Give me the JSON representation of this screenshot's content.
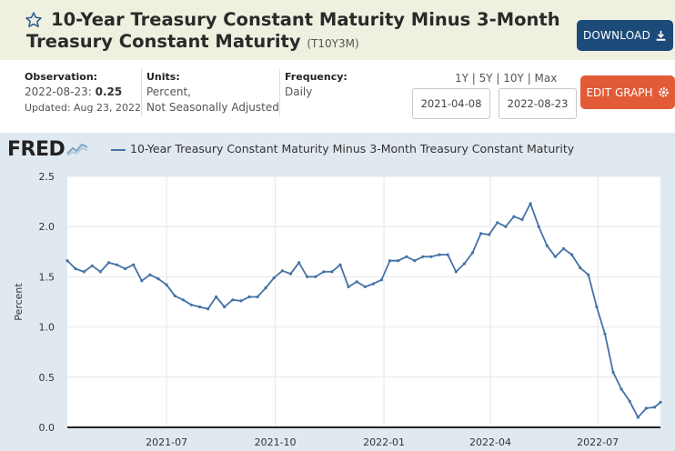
{
  "header": {
    "title": "10-Year Treasury Constant Maturity Minus 3-Month Treasury Constant Maturity",
    "series_id": "(T10Y3M)",
    "download_label": "DOWNLOAD"
  },
  "observation": {
    "label": "Observation:",
    "date": "2022-08-23:",
    "value": "0.25",
    "updated": "Updated: Aug 23, 2022"
  },
  "units": {
    "label": "Units:",
    "line1": "Percent,",
    "line2": "Not Seasonally Adjusted"
  },
  "frequency": {
    "label": "Frequency:",
    "value": "Daily"
  },
  "ranges": {
    "text": "1Y | 5Y | 10Y | Max",
    "start_date": "2021-04-08",
    "end_date": "2022-08-23",
    "edit_label": "EDIT GRAPH"
  },
  "colors": {
    "accent": "#1c4b7a",
    "edit": "#e15b37",
    "line": "#4572a7",
    "chart_bg": "#e1e9f0"
  },
  "chart_data": {
    "type": "line",
    "title": "",
    "legend": "10-Year Treasury Constant Maturity Minus 3-Month Treasury Constant Maturity",
    "ylabel": "Percent",
    "xlabel": "",
    "ylim": [
      0,
      2.5
    ],
    "xlim": [
      "2021-04-08",
      "2022-08-23"
    ],
    "yticks": [
      "0.0",
      "0.5",
      "1.0",
      "1.5",
      "2.0",
      "2.5"
    ],
    "xticks": [
      {
        "label": "2021-07",
        "date": "2021-07-01"
      },
      {
        "label": "2021-10",
        "date": "2021-10-01"
      },
      {
        "label": "2022-01",
        "date": "2022-01-01"
      },
      {
        "label": "2022-04",
        "date": "2022-04-01"
      },
      {
        "label": "2022-07",
        "date": "2022-07-01"
      }
    ],
    "grid": true,
    "series": [
      {
        "name": "10-Year Treasury Constant Maturity Minus 3-Month Treasury Constant Maturity",
        "points": [
          [
            "2021-04-08",
            1.66
          ],
          [
            "2021-04-15",
            1.58
          ],
          [
            "2021-04-22",
            1.55
          ],
          [
            "2021-04-29",
            1.61
          ],
          [
            "2021-05-06",
            1.55
          ],
          [
            "2021-05-13",
            1.64
          ],
          [
            "2021-05-20",
            1.62
          ],
          [
            "2021-05-27",
            1.58
          ],
          [
            "2021-06-03",
            1.62
          ],
          [
            "2021-06-10",
            1.46
          ],
          [
            "2021-06-17",
            1.52
          ],
          [
            "2021-06-24",
            1.48
          ],
          [
            "2021-07-01",
            1.42
          ],
          [
            "2021-07-08",
            1.31
          ],
          [
            "2021-07-15",
            1.27
          ],
          [
            "2021-07-22",
            1.22
          ],
          [
            "2021-07-29",
            1.2
          ],
          [
            "2021-08-05",
            1.18
          ],
          [
            "2021-08-12",
            1.3
          ],
          [
            "2021-08-19",
            1.2
          ],
          [
            "2021-08-26",
            1.27
          ],
          [
            "2021-09-02",
            1.26
          ],
          [
            "2021-09-09",
            1.3
          ],
          [
            "2021-09-16",
            1.3
          ],
          [
            "2021-09-23",
            1.39
          ],
          [
            "2021-09-30",
            1.49
          ],
          [
            "2021-10-07",
            1.56
          ],
          [
            "2021-10-14",
            1.53
          ],
          [
            "2021-10-21",
            1.64
          ],
          [
            "2021-10-28",
            1.5
          ],
          [
            "2021-11-04",
            1.5
          ],
          [
            "2021-11-11",
            1.55
          ],
          [
            "2021-11-18",
            1.55
          ],
          [
            "2021-11-25",
            1.62
          ],
          [
            "2021-12-02",
            1.4
          ],
          [
            "2021-12-09",
            1.45
          ],
          [
            "2021-12-16",
            1.4
          ],
          [
            "2021-12-23",
            1.43
          ],
          [
            "2021-12-30",
            1.47
          ],
          [
            "2022-01-06",
            1.66
          ],
          [
            "2022-01-13",
            1.66
          ],
          [
            "2022-01-20",
            1.7
          ],
          [
            "2022-01-27",
            1.66
          ],
          [
            "2022-02-03",
            1.7
          ],
          [
            "2022-02-10",
            1.7
          ],
          [
            "2022-02-17",
            1.72
          ],
          [
            "2022-02-24",
            1.72
          ],
          [
            "2022-03-03",
            1.55
          ],
          [
            "2022-03-10",
            1.63
          ],
          [
            "2022-03-17",
            1.74
          ],
          [
            "2022-03-24",
            1.93
          ],
          [
            "2022-03-31",
            1.92
          ],
          [
            "2022-04-07",
            2.04
          ],
          [
            "2022-04-14",
            2.0
          ],
          [
            "2022-04-21",
            2.1
          ],
          [
            "2022-04-28",
            2.07
          ],
          [
            "2022-05-05",
            2.23
          ],
          [
            "2022-05-12",
            2.0
          ],
          [
            "2022-05-19",
            1.81
          ],
          [
            "2022-05-26",
            1.7
          ],
          [
            "2022-06-02",
            1.78
          ],
          [
            "2022-06-09",
            1.72
          ],
          [
            "2022-06-16",
            1.59
          ],
          [
            "2022-06-23",
            1.52
          ],
          [
            "2022-06-30",
            1.2
          ],
          [
            "2022-07-07",
            0.93
          ],
          [
            "2022-07-14",
            0.55
          ],
          [
            "2022-07-21",
            0.38
          ],
          [
            "2022-07-28",
            0.26
          ],
          [
            "2022-08-04",
            0.1
          ],
          [
            "2022-08-11",
            0.19
          ],
          [
            "2022-08-18",
            0.2
          ],
          [
            "2022-08-23",
            0.25
          ]
        ]
      }
    ]
  }
}
